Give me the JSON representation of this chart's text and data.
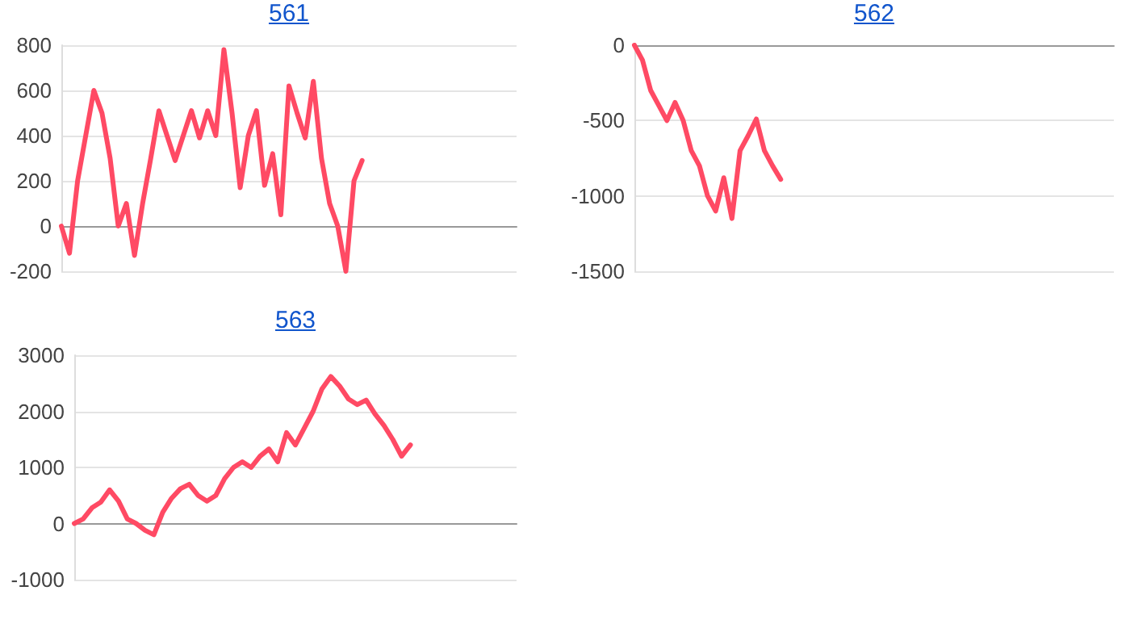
{
  "chart_data": [
    {
      "type": "line",
      "title": "561",
      "categories": [
        null,
        null,
        null,
        null,
        null,
        null,
        null,
        null,
        null,
        null,
        null,
        null,
        null,
        null,
        null,
        null,
        null,
        null,
        null,
        null,
        null,
        null,
        null,
        null,
        null,
        null,
        null,
        null,
        null,
        null,
        null,
        null,
        null,
        null,
        null,
        null,
        null,
        null,
        null,
        null,
        null,
        null,
        null,
        null,
        null,
        null,
        null,
        null,
        null,
        null,
        null,
        null,
        null,
        null,
        null,
        null,
        null
      ],
      "color": "#ff4a64",
      "grid": "y",
      "tick_labels": "y",
      "ylim": [
        -200,
        800
      ],
      "yticks": [
        -200,
        0,
        200,
        400,
        600,
        800
      ],
      "values": [
        0,
        -120,
        200,
        400,
        600,
        500,
        300,
        0,
        100,
        -130,
        100,
        300,
        510,
        400,
        290,
        400,
        510,
        390,
        510,
        400,
        780,
        500,
        170,
        400,
        510,
        180,
        320,
        50,
        620,
        500,
        390,
        640,
        300,
        100,
        0,
        -200,
        200,
        290,
        null,
        null,
        null,
        null,
        null,
        null,
        null,
        null,
        null,
        null,
        null,
        null,
        null,
        null,
        null,
        null,
        null,
        null,
        null
      ]
    },
    {
      "type": "line",
      "title": "562",
      "categories": [
        null,
        null,
        null,
        null,
        null,
        null,
        null,
        null,
        null,
        null,
        null,
        null,
        null,
        null,
        null,
        null,
        null,
        null,
        null,
        null,
        null,
        null,
        null,
        null,
        null,
        null,
        null,
        null,
        null,
        null,
        null,
        null,
        null,
        null,
        null,
        null,
        null,
        null,
        null,
        null,
        null,
        null,
        null,
        null,
        null,
        null,
        null,
        null,
        null,
        null,
        null,
        null,
        null,
        null,
        null,
        null,
        null,
        null,
        null,
        null
      ],
      "color": "#ff4a64",
      "grid": "y",
      "tick_labels": "y",
      "ylim": [
        -1500,
        0
      ],
      "yticks": [
        -1500,
        -1000,
        -500,
        0
      ],
      "values": [
        0,
        -100,
        -300,
        -400,
        -500,
        -380,
        -500,
        -700,
        -800,
        -1000,
        -1100,
        -880,
        -1150,
        -700,
        -600,
        -490,
        -700,
        -800,
        -890,
        null,
        null,
        null,
        null,
        null,
        null,
        null,
        null,
        null,
        null,
        null,
        null,
        null,
        null,
        null,
        null,
        null,
        null,
        null,
        null,
        null,
        null,
        null,
        null,
        null,
        null,
        null,
        null,
        null,
        null,
        null,
        null,
        null,
        null,
        null,
        null,
        null,
        null,
        null,
        null,
        null
      ]
    },
    {
      "type": "line",
      "title": "563",
      "categories": [
        null,
        null,
        null,
        null,
        null,
        null,
        null,
        null,
        null,
        null,
        null,
        null,
        null,
        null,
        null,
        null,
        null,
        null,
        null,
        null,
        null,
        null,
        null,
        null,
        null,
        null,
        null,
        null,
        null,
        null,
        null,
        null,
        null,
        null,
        null,
        null,
        null,
        null,
        null,
        null,
        null,
        null,
        null,
        null,
        null,
        null,
        null,
        null,
        null,
        null,
        null
      ],
      "color": "#ff4a64",
      "grid": "y",
      "tick_labels": "y",
      "ylim": [
        -1000,
        3000
      ],
      "yticks": [
        -1000,
        0,
        1000,
        2000,
        3000
      ],
      "values": [
        0,
        80,
        280,
        380,
        600,
        400,
        80,
        0,
        -120,
        -200,
        200,
        450,
        620,
        700,
        500,
        400,
        500,
        800,
        1000,
        1100,
        1000,
        1200,
        1330,
        1100,
        1620,
        1400,
        1700,
        2000,
        2400,
        2620,
        2450,
        2220,
        2120,
        2200,
        1950,
        1750,
        1500,
        1200,
        1400,
        null,
        null,
        null,
        null,
        null,
        null,
        null,
        null,
        null,
        null,
        null,
        null
      ]
    }
  ]
}
